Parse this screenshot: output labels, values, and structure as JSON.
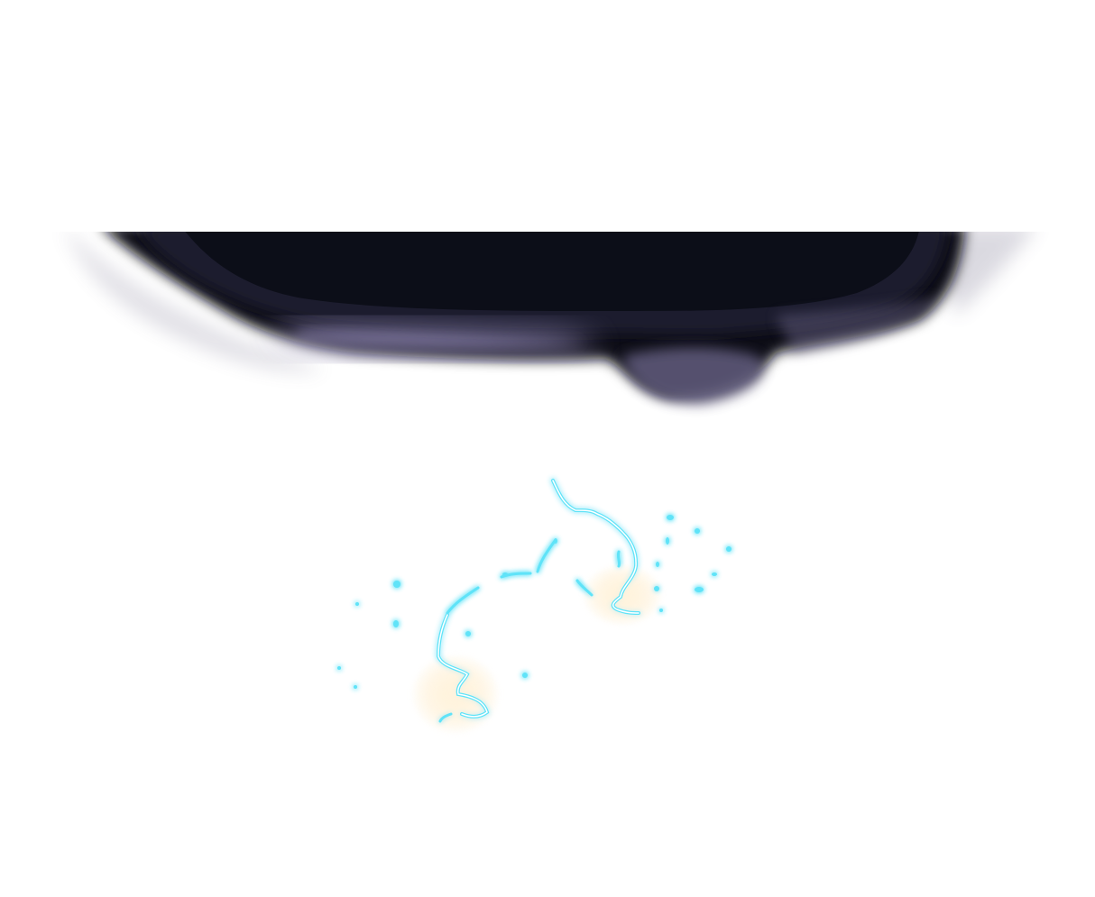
{
  "scene": {
    "background": "#ffffff",
    "cloud": {
      "core_color": "#0c0e18",
      "mid_color": "#1d1c2e",
      "highlight_color": "#8a82ad",
      "shadow_color": "#5d5878"
    },
    "lightning": {
      "core_color": "#ffffff",
      "glow_color": "#5fe3f8",
      "halo_color": "#c8f4ff",
      "impact_glow_color": "#fff3dd"
    }
  }
}
